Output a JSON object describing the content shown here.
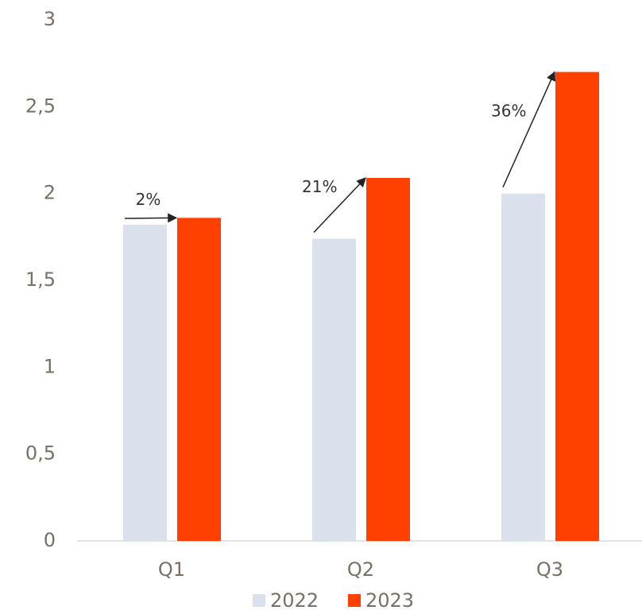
{
  "chart_data": {
    "type": "bar",
    "categories": [
      "Q1",
      "Q2",
      "Q3"
    ],
    "series": [
      {
        "name": "2022",
        "color": "#dae0ec",
        "values": [
          1.82,
          1.74,
          2.0
        ]
      },
      {
        "name": "2023",
        "color": "#ff4000",
        "values": [
          1.86,
          2.09,
          2.7
        ]
      }
    ],
    "annotations": [
      "2%",
      "21%",
      "36%"
    ],
    "ylim": [
      0,
      3
    ],
    "yticks": [
      0,
      {
        "value": 0.5,
        "label": "0,5"
      },
      1,
      {
        "value": 1.5,
        "label": "1,5"
      },
      2,
      {
        "value": 2.5,
        "label": "2,5"
      },
      3
    ],
    "grid": false,
    "legend": "bottom"
  }
}
